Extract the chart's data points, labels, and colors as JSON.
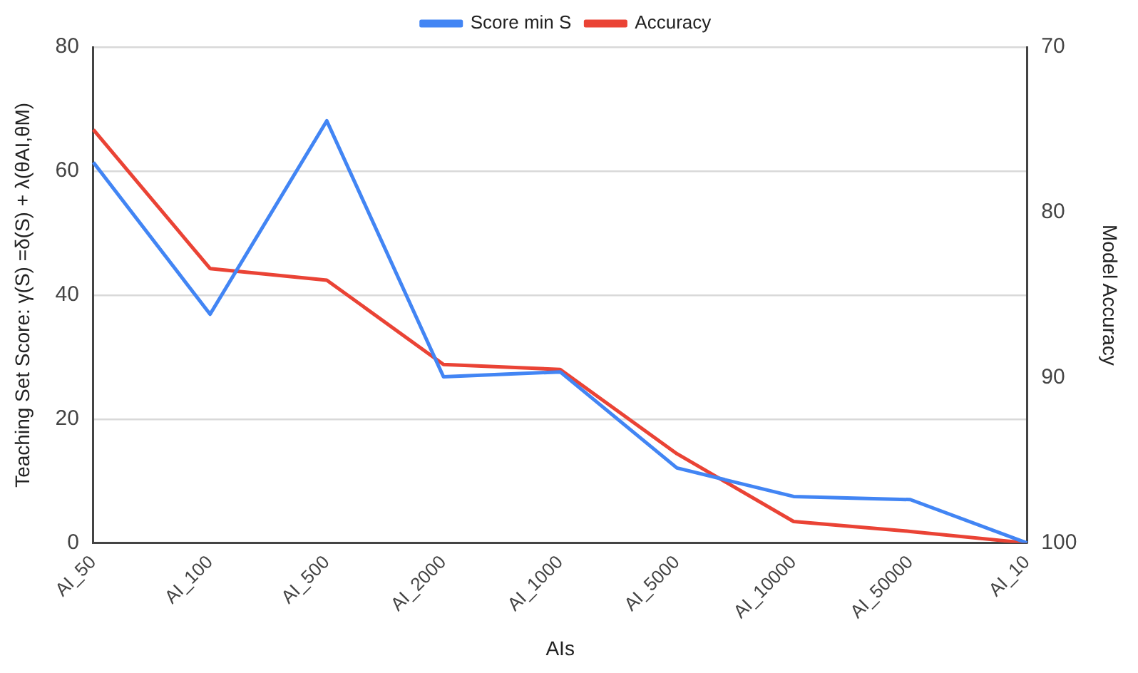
{
  "chart_data": {
    "type": "line",
    "xlabel": "AIs",
    "ylabel": "Teaching Set Score: γ(S) =δ(S) + λ(θAI,θM)",
    "y2label": "Model Accuracy",
    "categories": [
      "AI_50",
      "AI_100",
      "AI_500",
      "AI_2000",
      "AI_1000",
      "AI_5000",
      "AI_10000",
      "AI_50000",
      "AI_10"
    ],
    "series": [
      {
        "name": "Score min S",
        "color": "#4285f4",
        "values": [
          61.4,
          36.9,
          68.1,
          26.8,
          27.6,
          12.1,
          7.5,
          7.0,
          0
        ]
      },
      {
        "name": "Accuracy",
        "color": "#ea4335",
        "axis": "y2",
        "values": [
          75.0,
          83.4,
          84.1,
          89.2,
          89.5,
          94.6,
          98.7,
          99.3,
          100
        ]
      }
    ],
    "ylim": [
      0,
      80
    ],
    "yticks": [
      0,
      20,
      40,
      60,
      80
    ],
    "y2lim": [
      100,
      70
    ],
    "y2ticks": [
      70,
      80,
      90,
      100
    ],
    "grid": "y",
    "legend": "top",
    "marker": "none",
    "line_style": "solid"
  }
}
